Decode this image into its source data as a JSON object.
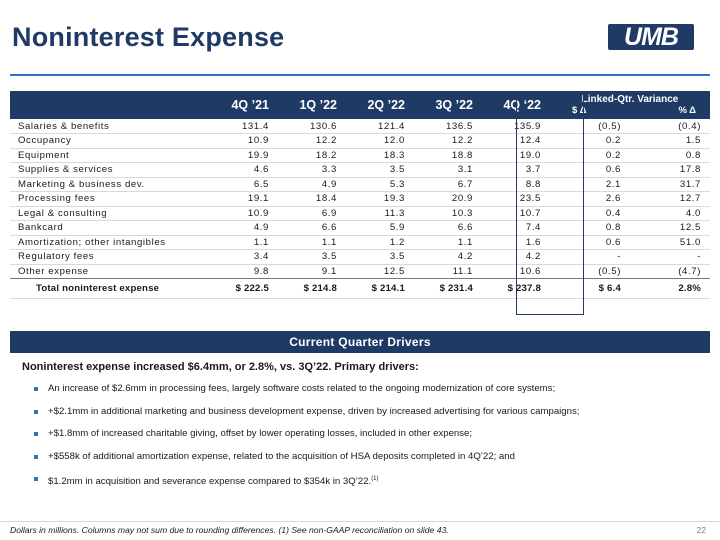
{
  "title": "Noninterest Expense",
  "logo_text": "UMB",
  "table": {
    "columns": [
      "4Q ’21",
      "1Q ’22",
      "2Q ’22",
      "3Q ’22",
      "4Q ‘22"
    ],
    "variance_header": "Linked-Qtr. Variance",
    "variance_dollar": "$ Δ",
    "variance_pct": "% Δ",
    "rows": [
      {
        "label": "Salaries & benefits",
        "values": [
          "131.4",
          "130.6",
          "121.4",
          "136.5",
          "135.9",
          "(0.5)",
          "(0.4)"
        ]
      },
      {
        "label": "Occupancy",
        "values": [
          "10.9",
          "12.2",
          "12.0",
          "12.2",
          "12.4",
          "0.2",
          "1.5"
        ]
      },
      {
        "label": "Equipment",
        "values": [
          "19.9",
          "18.2",
          "18.3",
          "18.8",
          "19.0",
          "0.2",
          "0.8"
        ]
      },
      {
        "label": "Supplies & services",
        "values": [
          "4.6",
          "3.3",
          "3.5",
          "3.1",
          "3.7",
          "0.6",
          "17.8"
        ]
      },
      {
        "label": "Marketing & business dev.",
        "values": [
          "6.5",
          "4.9",
          "5.3",
          "6.7",
          "8.8",
          "2.1",
          "31.7"
        ]
      },
      {
        "label": "Processing fees",
        "values": [
          "19.1",
          "18.4",
          "19.3",
          "20.9",
          "23.5",
          "2.6",
          "12.7"
        ]
      },
      {
        "label": "Legal & consulting",
        "values": [
          "10.9",
          "6.9",
          "11.3",
          "10.3",
          "10.7",
          "0.4",
          "4.0"
        ]
      },
      {
        "label": "Bankcard",
        "values": [
          "4.9",
          "6.6",
          "5.9",
          "6.6",
          "7.4",
          "0.8",
          "12.5"
        ]
      },
      {
        "label": "Amortization; other intangibles",
        "values": [
          "1.1",
          "1.1",
          "1.2",
          "1.1",
          "1.6",
          "0.6",
          "51.0"
        ]
      },
      {
        "label": "Regulatory fees",
        "values": [
          "3.4",
          "3.5",
          "3.5",
          "4.2",
          "4.2",
          "-",
          "-"
        ]
      },
      {
        "label": "Other expense",
        "values": [
          "9.8",
          "9.1",
          "12.5",
          "11.1",
          "10.6",
          "(0.5)",
          "(4.7)"
        ]
      }
    ],
    "total": {
      "label": "Total noninterest expense",
      "values": [
        "$ 222.5",
        "$ 214.8",
        "$ 214.1",
        "$ 231.4",
        "$ 237.8",
        "$ 6.4",
        "2.8%"
      ]
    }
  },
  "drivers": {
    "header": "Current Quarter Drivers",
    "intro": "Noninterest expense increased $6.4mm, or 2.8%, vs. 3Q’22. Primary drivers:",
    "bullets": [
      "An increase of $2.6mm in processing fees, largely software costs related to the ongoing modernization of core systems;",
      "+$2.1mm in additional marketing and business development expense, driven by increased advertising for various campaigns;",
      "+$1.8mm of increased charitable giving, offset by lower operating losses, included in other expense;",
      "+$558k of additional amortization expense, related to the acquisition of HSA deposits completed in 4Q’22; and",
      "$1.2mm in acquisition and severance expense compared to $354k in 3Q’22."
    ],
    "last_bullet_sup": "(1)"
  },
  "footnote": "Dollars in millions. Columns may not sum due to rounding differences. (1) See non-GAAP reconciliation on slide 43.",
  "page_number": "22",
  "colors": {
    "navy": "#1f3a64",
    "accent_blue": "#2e72c4"
  }
}
